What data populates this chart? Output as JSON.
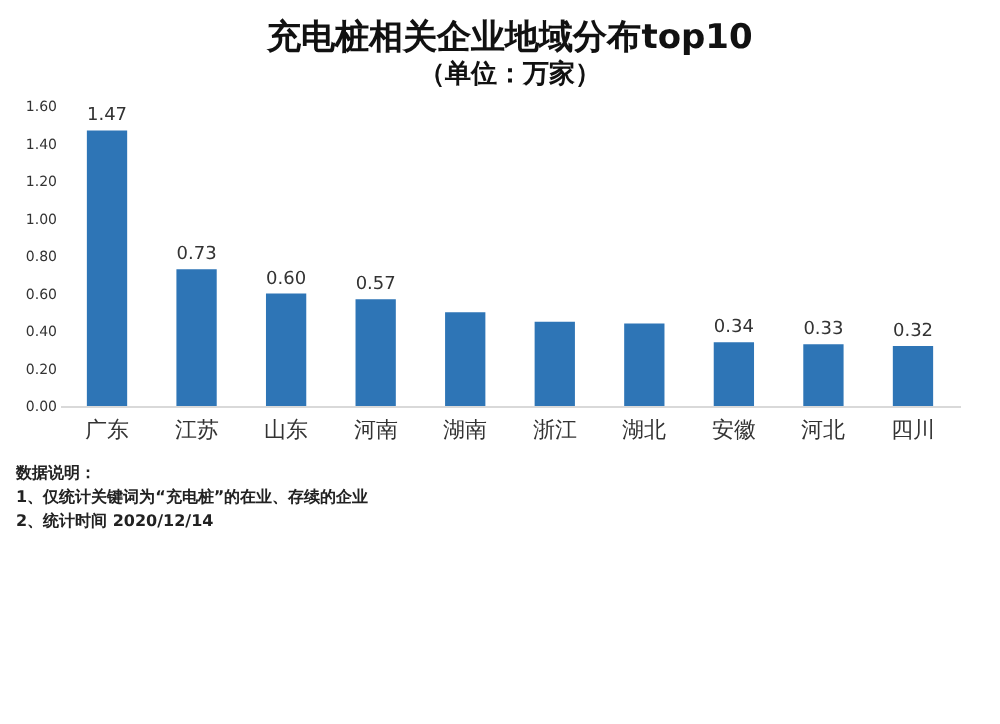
{
  "chart_data": {
    "type": "bar",
    "title": "充电桩相关企业地域分布top10",
    "subtitle": "（单位：万家）",
    "categories": [
      "广东",
      "江苏",
      "山东",
      "河南",
      "湖南",
      "浙江",
      "湖北",
      "安徽",
      "河北",
      "四川"
    ],
    "values": [
      1.47,
      0.73,
      0.6,
      0.57,
      0.5,
      0.45,
      0.44,
      0.34,
      0.33,
      0.32
    ],
    "value_labels": [
      "1.47",
      "0.73",
      "0.60",
      "0.57",
      null,
      null,
      null,
      "0.34",
      "0.33",
      "0.32"
    ],
    "color": "#2e75b6",
    "ylim": [
      0,
      1.6
    ],
    "yticks": [
      {
        "value": 0,
        "label": "0.00"
      },
      {
        "value": 0.2,
        "label": "0.20"
      },
      {
        "value": 0.4,
        "label": "0.40"
      },
      {
        "value": 0.6,
        "label": "0.60"
      },
      {
        "value": 0.8,
        "label": "0.80"
      },
      {
        "value": 1.0,
        "label": "1.00"
      },
      {
        "value": 1.2,
        "label": "1.20"
      },
      {
        "value": 1.4,
        "label": "1.40"
      },
      {
        "value": 1.6,
        "label": "1.60"
      }
    ],
    "grid": false,
    "annotations": [
      "数据说明：",
      "1、仅统计关键词为“充电桩”的在业、存续的企业",
      "2、统计时间 2020/12/14"
    ]
  }
}
